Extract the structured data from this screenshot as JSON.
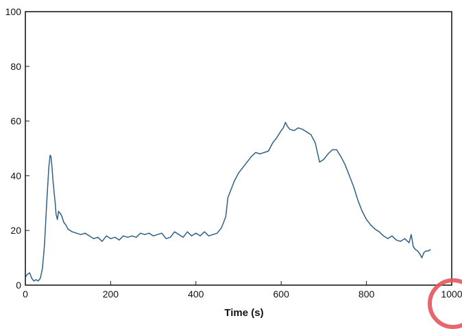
{
  "chart_data": {
    "type": "line",
    "title": "",
    "xlabel": "Time (s)",
    "ylabel": "",
    "xlim": [
      0,
      1000
    ],
    "ylim": [
      0,
      100
    ],
    "x_ticks": [
      0,
      200,
      400,
      600,
      800,
      1000
    ],
    "y_ticks": [
      0,
      20,
      40,
      60,
      80,
      100
    ],
    "grid": false,
    "line_color": "#2f5f86",
    "series": [
      {
        "x": [
          0,
          5,
          10,
          15,
          20,
          25,
          30,
          35,
          40,
          45,
          50,
          55,
          58,
          60,
          62,
          65,
          68,
          70,
          72,
          75,
          78,
          80,
          83,
          86,
          90,
          95,
          100,
          110,
          120,
          130,
          140,
          150,
          160,
          170,
          180,
          190,
          200,
          210,
          220,
          230,
          240,
          250,
          260,
          270,
          280,
          290,
          300,
          310,
          320,
          330,
          340,
          350,
          360,
          370,
          380,
          390,
          400,
          410,
          420,
          430,
          440,
          450,
          460,
          470,
          475,
          480,
          490,
          500,
          510,
          520,
          530,
          540,
          550,
          560,
          570,
          580,
          590,
          600,
          605,
          610,
          615,
          620,
          630,
          640,
          650,
          660,
          670,
          680,
          690,
          700,
          710,
          720,
          730,
          740,
          750,
          760,
          770,
          780,
          790,
          800,
          810,
          820,
          830,
          840,
          850,
          860,
          870,
          880,
          890,
          900,
          905,
          910,
          915,
          920,
          925,
          930,
          935,
          940,
          945,
          950
        ],
        "y": [
          3,
          4,
          4.5,
          2.5,
          1.5,
          2,
          1.5,
          2.5,
          6,
          15,
          30,
          43,
          47.5,
          47,
          44,
          38,
          33,
          30,
          26,
          24,
          27,
          26.5,
          26,
          25,
          23,
          22,
          20.5,
          19.5,
          19,
          18.5,
          19,
          18,
          17,
          17.5,
          16,
          18,
          17,
          17.5,
          16.5,
          18,
          17.5,
          18,
          17.5,
          19,
          18.5,
          19,
          18,
          18.5,
          19,
          17,
          17.5,
          19.5,
          18.5,
          17.5,
          19.5,
          18,
          19,
          18,
          19.5,
          18,
          18.5,
          19,
          21,
          25,
          32,
          34,
          38,
          41,
          43,
          45,
          47,
          48.5,
          48,
          48.5,
          49,
          52,
          54,
          56.5,
          57.5,
          59.5,
          58,
          57,
          56.5,
          57.5,
          57,
          56,
          55,
          52,
          45,
          46,
          48,
          49.5,
          49.5,
          47,
          44,
          40,
          36,
          31,
          27,
          24,
          22,
          20.5,
          19.5,
          18,
          17,
          18,
          16.5,
          16,
          17,
          15.5,
          18.5,
          14,
          13,
          12.5,
          11.5,
          10,
          12,
          12.5,
          12.5,
          13
        ]
      }
    ]
  }
}
